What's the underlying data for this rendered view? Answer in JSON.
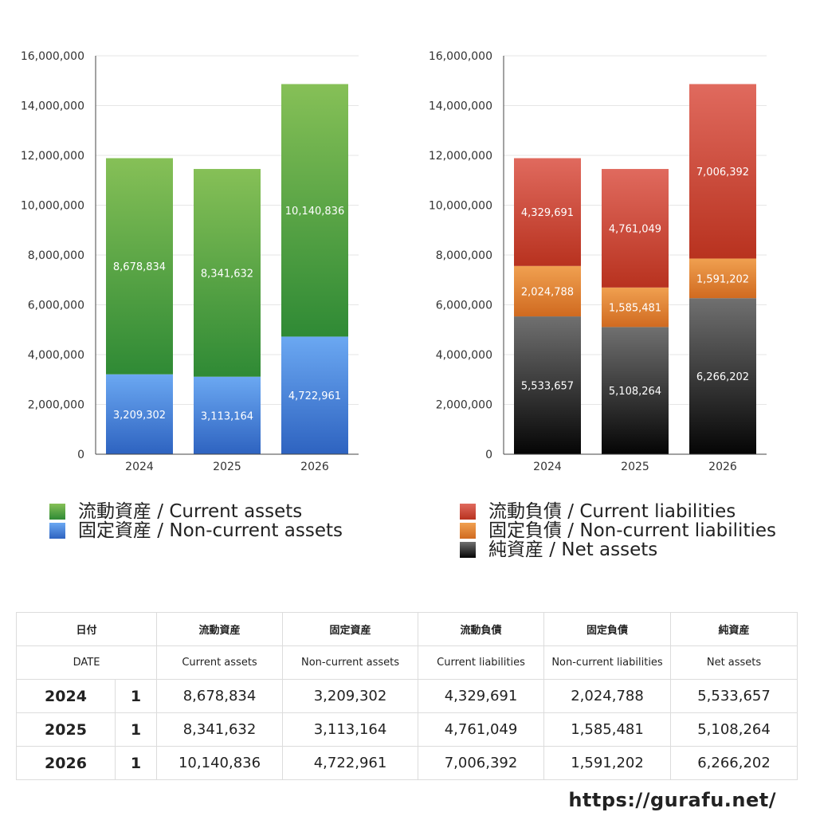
{
  "chart_data": [
    {
      "type": "bar",
      "stacked": true,
      "categories": [
        "2024",
        "2025",
        "2026"
      ],
      "ylim": [
        0,
        16000000
      ],
      "yticks": [
        "0",
        "2,000,000",
        "4,000,000",
        "6,000,000",
        "8,000,000",
        "10,000,000",
        "12,000,000",
        "14,000,000",
        "16,000,000"
      ],
      "series": [
        {
          "name": "固定資産 / Non-current assets",
          "values": [
            3209302,
            3113164,
            4722961
          ],
          "labels": [
            "3,209,302",
            "3,113,164",
            "4,722,961"
          ],
          "color_top": "#6ba8f2",
          "color_bottom": "#2e63c0"
        },
        {
          "name": "流動資産 / Current assets",
          "values": [
            8678834,
            8341632,
            10140836
          ],
          "labels": [
            "8,678,834",
            "8,341,632",
            "10,140,836"
          ],
          "color_top": "#86c057",
          "color_bottom": "#2f8a35"
        }
      ],
      "legend": [
        "流動資産 / Current assets",
        "固定資産 / Non-current assets"
      ]
    },
    {
      "type": "bar",
      "stacked": true,
      "categories": [
        "2024",
        "2025",
        "2026"
      ],
      "ylim": [
        0,
        16000000
      ],
      "yticks": [
        "0",
        "2,000,000",
        "4,000,000",
        "6,000,000",
        "8,000,000",
        "10,000,000",
        "12,000,000",
        "14,000,000",
        "16,000,000"
      ],
      "series": [
        {
          "name": "純資産 / Net assets",
          "values": [
            5533657,
            5108264,
            6266202
          ],
          "labels": [
            "5,533,657",
            "5,108,264",
            "6,266,202"
          ],
          "color_top": "#707070",
          "color_bottom": "#050505"
        },
        {
          "name": "固定負債 / Non-current liabilities",
          "values": [
            2024788,
            1585481,
            1591202
          ],
          "labels": [
            "2,024,788",
            "1,585,481",
            "1,591,202"
          ],
          "color_top": "#f0a050",
          "color_bottom": "#d06a20"
        },
        {
          "name": "流動負債 / Current liabilities",
          "values": [
            4329691,
            4761049,
            7006392
          ],
          "labels": [
            "4,329,691",
            "4,761,049",
            "7,006,392"
          ],
          "color_top": "#e06a5e",
          "color_bottom": "#b8321f"
        }
      ],
      "legend": [
        "流動負債 / Current liabilities",
        "固定負債 / Non-current liabilities",
        "純資産 / Net assets"
      ]
    }
  ],
  "legend_left": [
    {
      "label": "流動資産 / Current assets",
      "color": "#4ea83e"
    },
    {
      "label": "固定資産 / Non-current assets",
      "color": "#4a8fe0"
    }
  ],
  "legend_right": [
    {
      "label": "流動負債 / Current liabilities",
      "color": "#d7473a"
    },
    {
      "label": "固定負債 / Non-current liabilities",
      "color": "#e98a35"
    },
    {
      "label": "純資産 / Net assets",
      "color": "#333333"
    }
  ],
  "table": {
    "header_jp": [
      "日付",
      "流動資産",
      "固定資産",
      "流動負債",
      "固定負債",
      "純資産"
    ],
    "header_en": [
      "DATE",
      "Current assets",
      "Non-current assets",
      "Current liabilities",
      "Non-current liabilities",
      "Net assets"
    ],
    "rows": [
      {
        "year": "2024",
        "q": "1",
        "cells": [
          "8,678,834",
          "3,209,302",
          "4,329,691",
          "2,024,788",
          "5,533,657"
        ]
      },
      {
        "year": "2025",
        "q": "1",
        "cells": [
          "8,341,632",
          "3,113,164",
          "4,761,049",
          "1,585,481",
          "5,108,264"
        ]
      },
      {
        "year": "2026",
        "q": "1",
        "cells": [
          "10,140,836",
          "4,722,961",
          "7,006,392",
          "1,591,202",
          "6,266,202"
        ]
      }
    ]
  },
  "footer": {
    "url": "https://gurafu.net/"
  }
}
